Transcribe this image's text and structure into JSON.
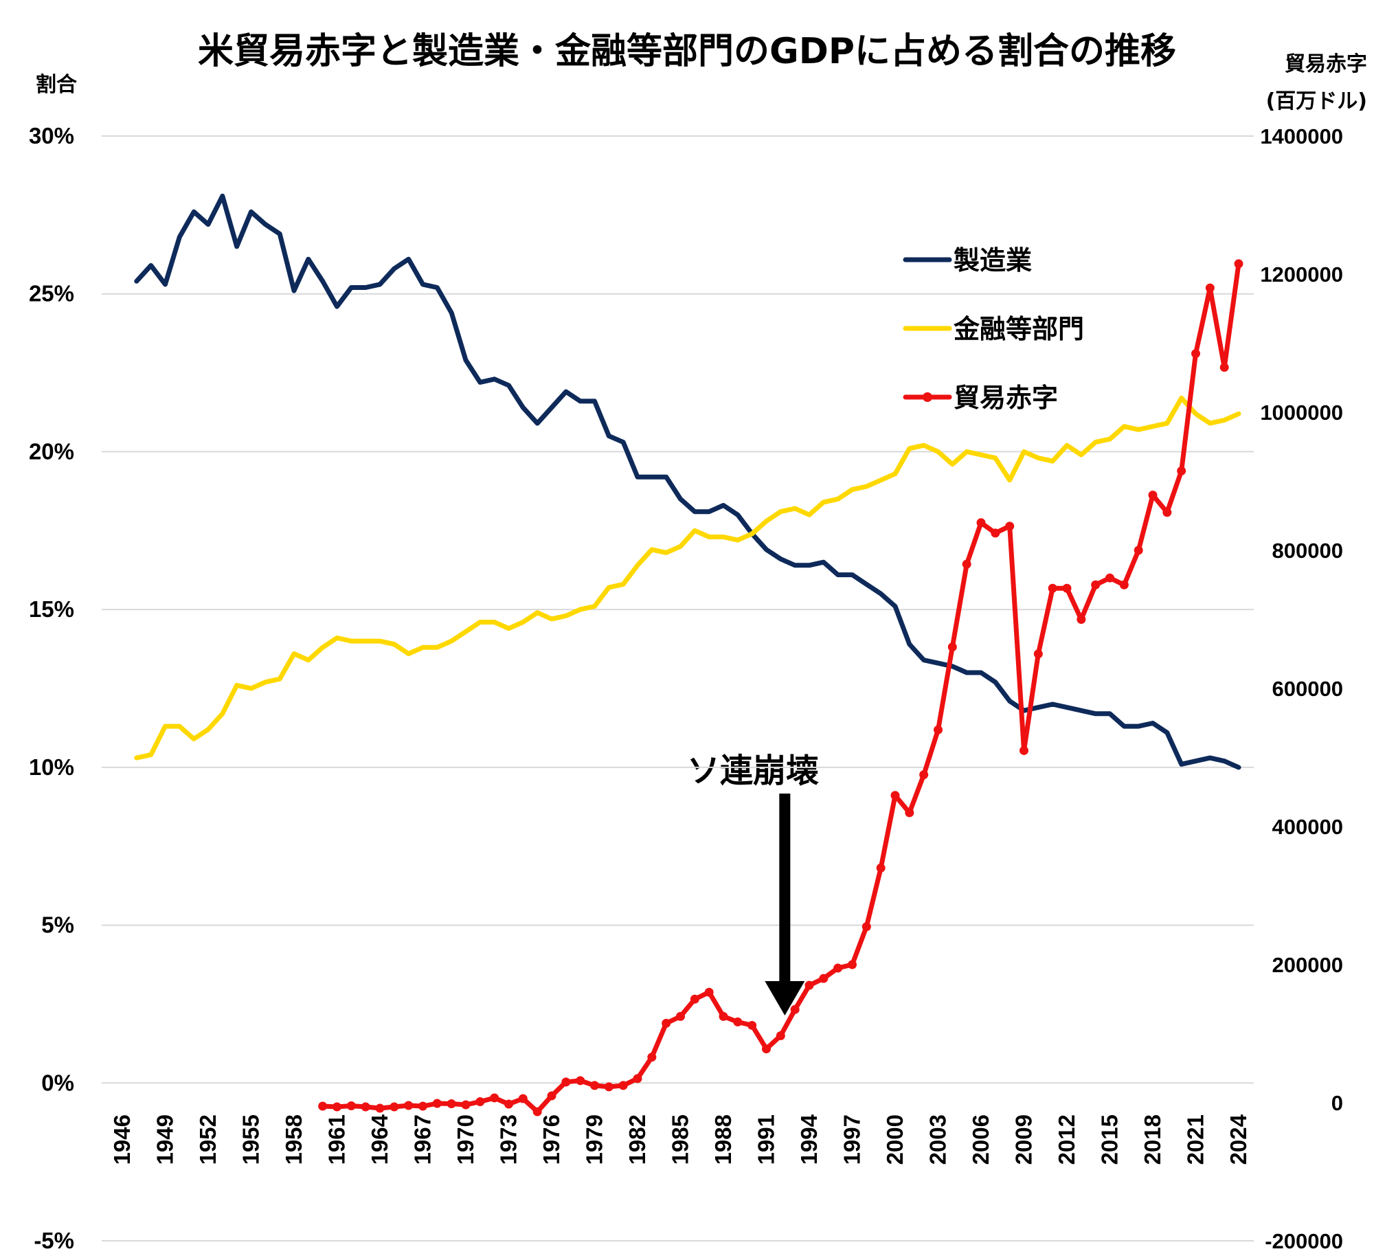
{
  "chart_data": {
    "type": "line",
    "title": "米貿易赤字と製造業・金融等部門のGDPに占める割合の推移",
    "ylabel_left": "割合",
    "ylabel_right": "貿易赤字",
    "ylabel_right_unit": "(百万ドル)",
    "grid": true,
    "legend_position": "upper-right",
    "left_axis": {
      "ylim": [
        -5,
        30
      ],
      "ticks": [
        -5,
        0,
        5,
        10,
        15,
        20,
        25,
        30
      ],
      "tick_labels": [
        "-5%",
        "0%",
        "5%",
        "10%",
        "15%",
        "20%",
        "25%",
        "30%"
      ]
    },
    "right_axis": {
      "ylim": [
        -200000,
        1400000
      ],
      "ticks": [
        -200000,
        0,
        200000,
        400000,
        600000,
        800000,
        1000000,
        1200000,
        1400000
      ],
      "tick_labels": [
        "-200000",
        "0",
        "200000",
        "400000",
        "600000",
        "800000",
        "1000000",
        "1200000",
        "1400000"
      ]
    },
    "x_axis": {
      "range": [
        1946,
        2024
      ],
      "tick_labels": [
        "1946",
        "1949",
        "1952",
        "1955",
        "1958",
        "1961",
        "1964",
        "1967",
        "1970",
        "1973",
        "1976",
        "1979",
        "1982",
        "1985",
        "1988",
        "1991",
        "1994",
        "1997",
        "2000",
        "2003",
        "2006",
        "2009",
        "2012",
        "2015",
        "2018",
        "2021",
        "2024"
      ]
    },
    "series": [
      {
        "name": "製造業",
        "axis": "left",
        "color": "#0e2a5a",
        "markers": false,
        "x": [
          1947,
          1948,
          1949,
          1950,
          1951,
          1952,
          1953,
          1954,
          1955,
          1956,
          1957,
          1958,
          1959,
          1960,
          1961,
          1962,
          1963,
          1964,
          1965,
          1966,
          1967,
          1968,
          1969,
          1970,
          1971,
          1972,
          1973,
          1974,
          1975,
          1976,
          1977,
          1978,
          1979,
          1980,
          1981,
          1982,
          1983,
          1984,
          1985,
          1986,
          1987,
          1988,
          1989,
          1990,
          1991,
          1992,
          1993,
          1994,
          1995,
          1996,
          1997,
          1998,
          1999,
          2000,
          2001,
          2002,
          2003,
          2004,
          2005,
          2006,
          2007,
          2008,
          2009,
          2010,
          2011,
          2012,
          2013,
          2014,
          2015,
          2016,
          2017,
          2018,
          2019,
          2020,
          2021,
          2022,
          2023,
          2024
        ],
        "values": [
          25.4,
          25.9,
          25.3,
          26.8,
          27.6,
          27.2,
          28.1,
          26.5,
          27.6,
          27.2,
          26.9,
          25.1,
          26.1,
          25.4,
          24.6,
          25.2,
          25.2,
          25.3,
          25.8,
          26.1,
          25.3,
          25.2,
          24.4,
          22.9,
          22.2,
          22.3,
          22.1,
          21.4,
          20.9,
          21.4,
          21.9,
          21.6,
          21.6,
          20.5,
          20.3,
          19.2,
          19.2,
          19.2,
          18.5,
          18.1,
          18.1,
          18.3,
          18.0,
          17.4,
          16.9,
          16.6,
          16.4,
          16.4,
          16.5,
          16.1,
          16.1,
          15.8,
          15.5,
          15.1,
          13.9,
          13.4,
          13.3,
          13.2,
          13.0,
          13.0,
          12.7,
          12.1,
          11.8,
          11.9,
          12.0,
          11.9,
          11.8,
          11.7,
          11.7,
          11.3,
          11.3,
          11.4,
          11.1,
          10.1,
          10.2,
          10.3,
          10.2,
          10.0
        ]
      },
      {
        "name": "金融等部門",
        "axis": "left",
        "color": "#ffd800",
        "markers": false,
        "x": [
          1947,
          1948,
          1949,
          1950,
          1951,
          1952,
          1953,
          1954,
          1955,
          1956,
          1957,
          1958,
          1959,
          1960,
          1961,
          1962,
          1963,
          1964,
          1965,
          1966,
          1967,
          1968,
          1969,
          1970,
          1971,
          1972,
          1973,
          1974,
          1975,
          1976,
          1977,
          1978,
          1979,
          1980,
          1981,
          1982,
          1983,
          1984,
          1985,
          1986,
          1987,
          1988,
          1989,
          1990,
          1991,
          1992,
          1993,
          1994,
          1995,
          1996,
          1997,
          1998,
          1999,
          2000,
          2001,
          2002,
          2003,
          2004,
          2005,
          2006,
          2007,
          2008,
          2009,
          2010,
          2011,
          2012,
          2013,
          2014,
          2015,
          2016,
          2017,
          2018,
          2019,
          2020,
          2021,
          2022,
          2023,
          2024
        ],
        "values": [
          10.3,
          10.4,
          11.3,
          11.3,
          10.9,
          11.2,
          11.7,
          12.6,
          12.5,
          12.7,
          12.8,
          13.6,
          13.4,
          13.8,
          14.1,
          14.0,
          14.0,
          14.0,
          13.9,
          13.6,
          13.8,
          13.8,
          14.0,
          14.3,
          14.6,
          14.6,
          14.4,
          14.6,
          14.9,
          14.7,
          14.8,
          15.0,
          15.1,
          15.7,
          15.8,
          16.4,
          16.9,
          16.8,
          17.0,
          17.5,
          17.3,
          17.3,
          17.2,
          17.4,
          17.8,
          18.1,
          18.2,
          18.0,
          18.4,
          18.5,
          18.8,
          18.9,
          19.1,
          19.3,
          20.1,
          20.2,
          20.0,
          19.6,
          20.0,
          19.9,
          19.8,
          19.1,
          20.0,
          19.8,
          19.7,
          20.2,
          19.9,
          20.3,
          20.4,
          20.8,
          20.7,
          20.8,
          20.9,
          21.7,
          21.2,
          20.9,
          21.0,
          21.2
        ]
      },
      {
        "name": "貿易赤字",
        "axis": "right",
        "color": "#ee1111",
        "markers": true,
        "x": [
          1960,
          1961,
          1962,
          1963,
          1964,
          1965,
          1966,
          1967,
          1968,
          1969,
          1970,
          1971,
          1972,
          1973,
          1974,
          1975,
          1976,
          1977,
          1978,
          1979,
          1980,
          1981,
          1982,
          1983,
          1984,
          1985,
          1986,
          1987,
          1988,
          1989,
          1990,
          1991,
          1992,
          1993,
          1994,
          1995,
          1996,
          1997,
          1998,
          1999,
          2000,
          2001,
          2002,
          2003,
          2004,
          2005,
          2006,
          2007,
          2008,
          2009,
          2010,
          2011,
          2012,
          2013,
          2014,
          2015,
          2016,
          2017,
          2018,
          2019,
          2020,
          2021,
          2022,
          2023,
          2024
        ],
        "values": [
          -5000,
          -6000,
          -4500,
          -6000,
          -8000,
          -6000,
          -4000,
          -5000,
          -1000,
          -1500,
          -3000,
          1500,
          7000,
          -2000,
          6000,
          -13000,
          10000,
          30000,
          32000,
          25000,
          23000,
          25000,
          35000,
          66000,
          115000,
          125000,
          150000,
          160000,
          125000,
          117000,
          112000,
          78000,
          97000,
          135000,
          170000,
          180000,
          195000,
          200000,
          255000,
          340000,
          445000,
          420000,
          475000,
          540000,
          660000,
          780000,
          840000,
          825000,
          835000,
          510000,
          650000,
          745000,
          745000,
          700000,
          750000,
          760000,
          750000,
          800000,
          880000,
          855000,
          915000,
          1085000,
          1180000,
          1065000,
          1215000
        ]
      }
    ],
    "annotations": [
      {
        "text": "ソ連崩壊",
        "x": 1992,
        "type": "down-arrow"
      }
    ]
  }
}
